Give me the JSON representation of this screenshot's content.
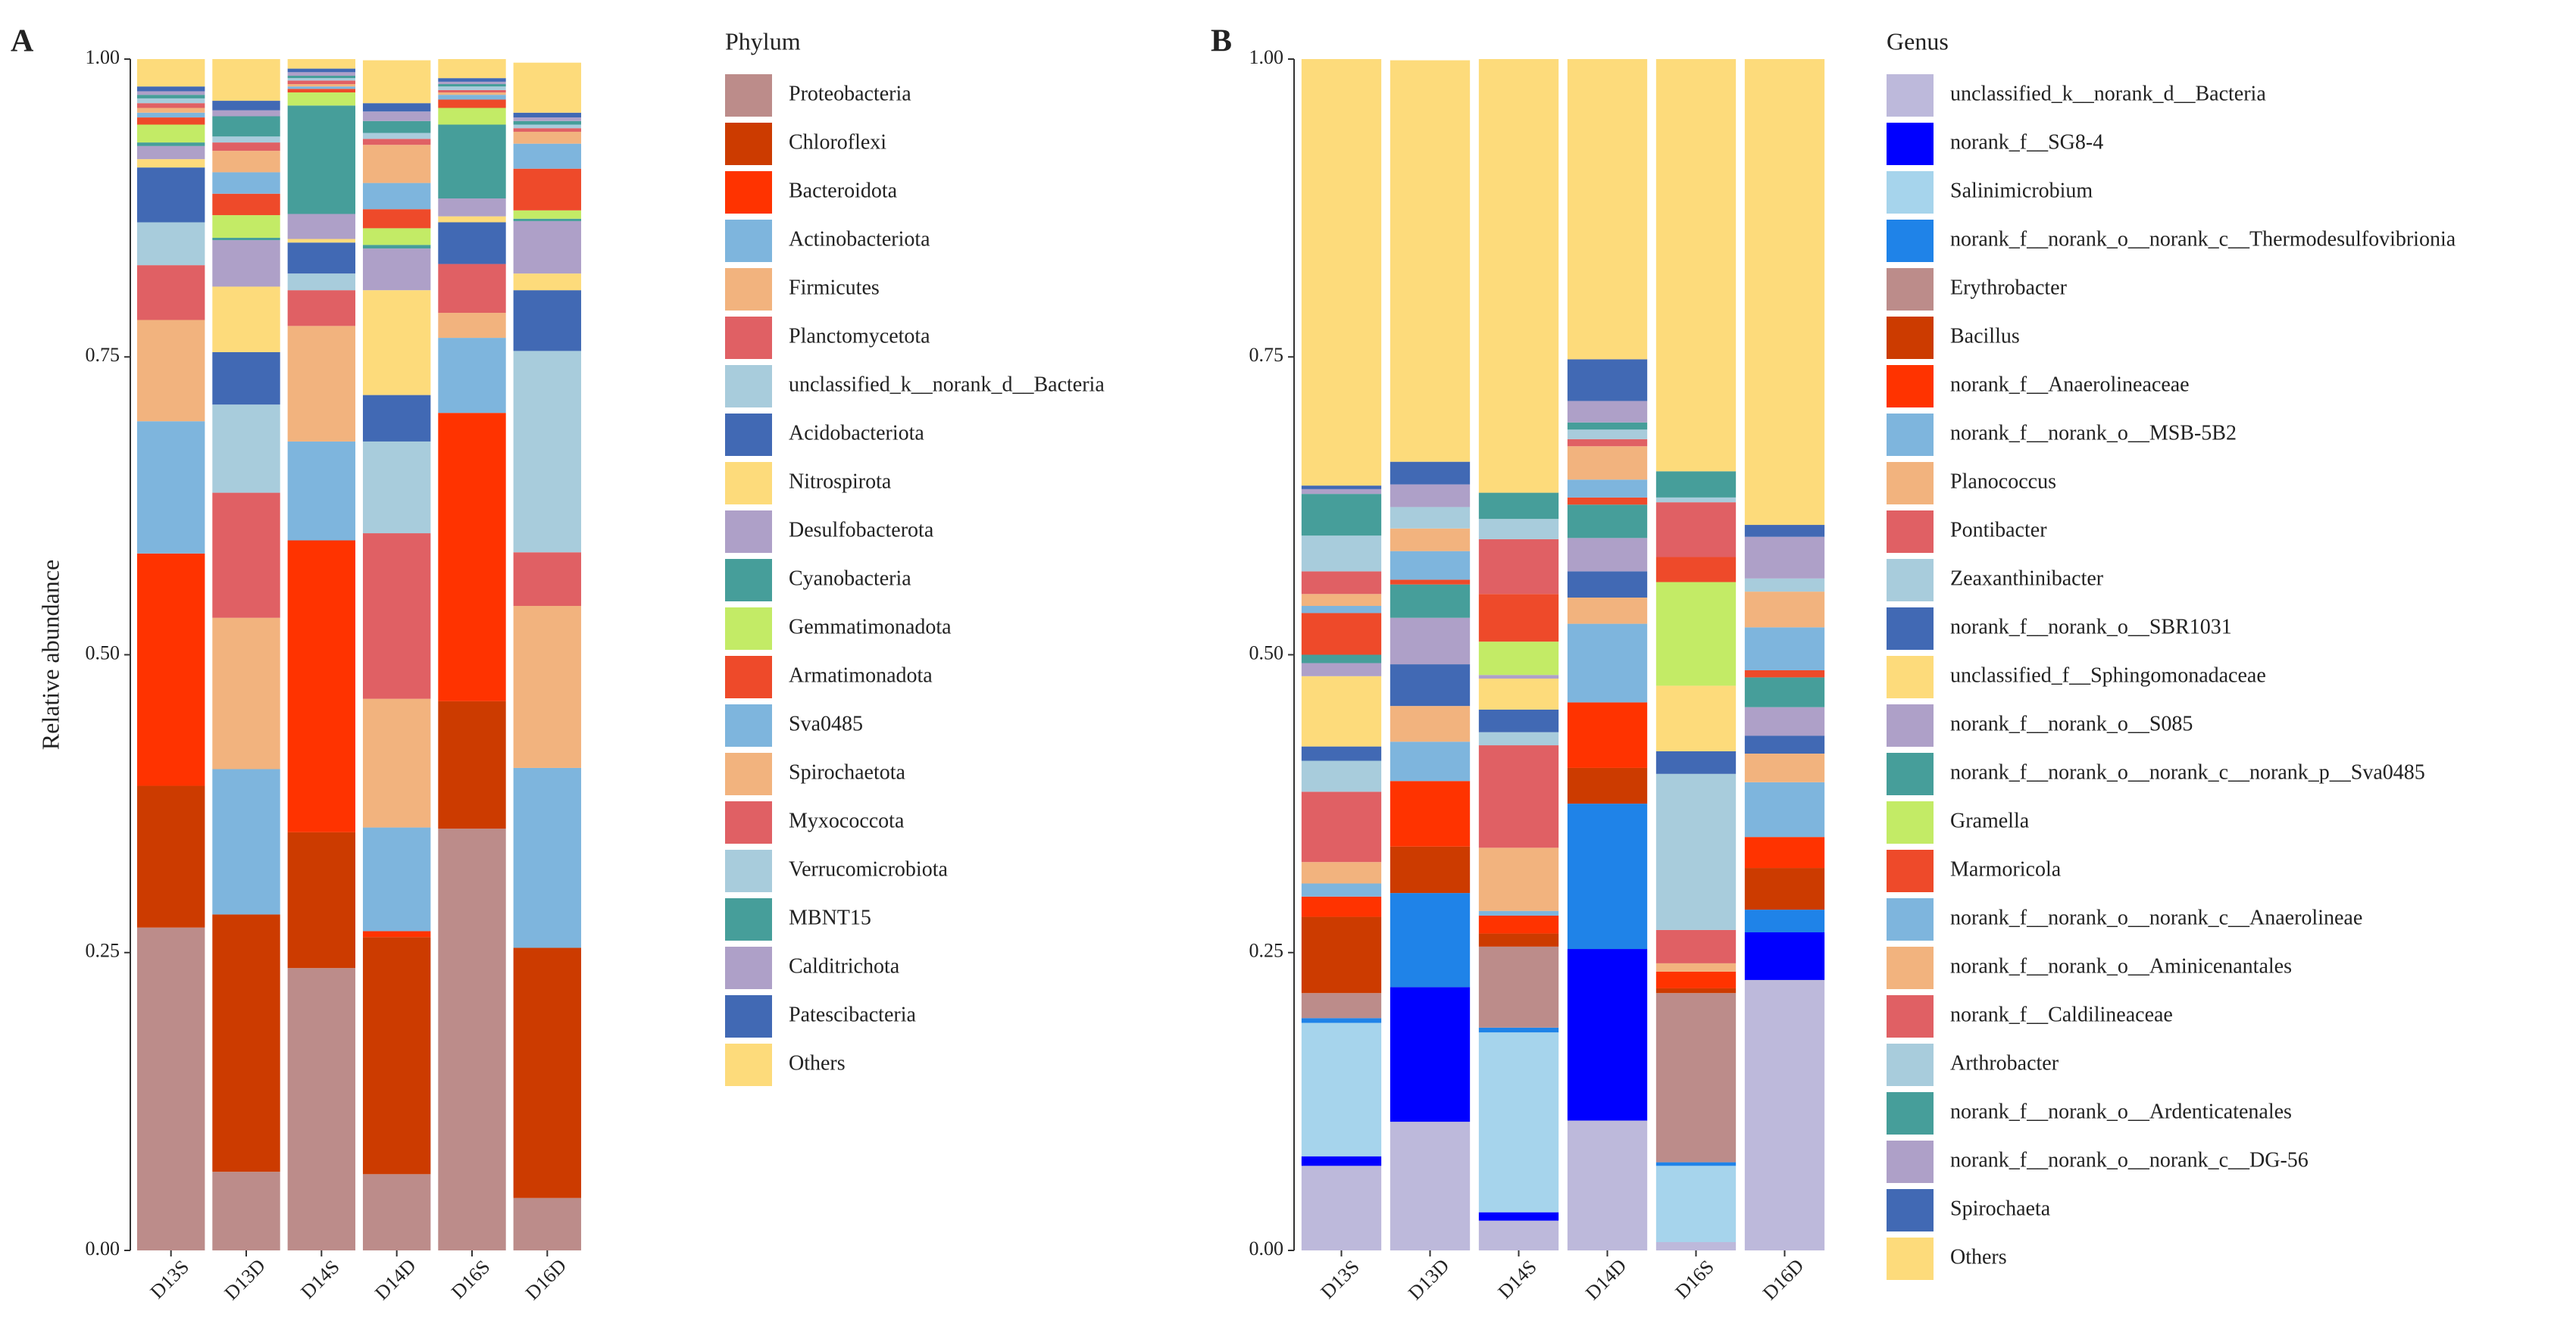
{
  "chart_data": [
    {
      "type": "bar",
      "stacked": true,
      "title": "A",
      "ylabel": "Relative abundance",
      "legend_title": "Phylum",
      "categories": [
        "D13S",
        "D13D",
        "D14S",
        "D14D",
        "D16S",
        "D16D"
      ],
      "ylim": [
        0,
        1
      ],
      "yticks": [
        {
          "value": 0,
          "label": "0.00"
        },
        {
          "value": 0.25,
          "label": "0.25"
        },
        {
          "value": 0.5,
          "label": "0.50"
        },
        {
          "value": 0.75,
          "label": "0.75"
        },
        {
          "value": 1,
          "label": "1.00"
        }
      ],
      "series": [
        {
          "name": "Proteobacteria",
          "color": "#BC8C8A",
          "values": [
            0.271,
            0.066,
            0.237,
            0.064,
            0.354,
            0.044
          ]
        },
        {
          "name": "Chloroflexi",
          "color": "#CC3B00",
          "values": [
            0.119,
            0.216,
            0.114,
            0.199,
            0.107,
            0.21
          ]
        },
        {
          "name": "Bacteroidota",
          "color": "#FF3300",
          "values": [
            0.195,
            0,
            0.245,
            0.005,
            0.242,
            0
          ]
        },
        {
          "name": "Actinobacteriota",
          "color": "#7EB5DD",
          "values": [
            0.111,
            0.122,
            0.083,
            0.087,
            0.063,
            0.151
          ]
        },
        {
          "name": "Firmicutes",
          "color": "#F2B37E",
          "values": [
            0.085,
            0.127,
            0.097,
            0.108,
            0.021,
            0.136
          ]
        },
        {
          "name": "Planctomycetota",
          "color": "#E06064",
          "values": [
            0.046,
            0.105,
            0.03,
            0.139,
            0.041,
            0.045
          ]
        },
        {
          "name": "unclassified_k__norank_d__Bacteria",
          "color": "#A8CCDC",
          "values": [
            0.036,
            0.074,
            0.014,
            0.077,
            0,
            0.169
          ]
        },
        {
          "name": "Acidobacteriota",
          "color": "#4169B4",
          "values": [
            0.046,
            0.044,
            0.026,
            0.039,
            0.035,
            0.051
          ]
        },
        {
          "name": "Nitrospirota",
          "color": "#FDDB7B",
          "values": [
            0.007,
            0.055,
            0.003,
            0.088,
            0.005,
            0.014
          ]
        },
        {
          "name": "Desulfobacterota",
          "color": "#AEA0C8",
          "values": [
            0.011,
            0.039,
            0.021,
            0.035,
            0.015,
            0.044
          ]
        },
        {
          "name": "Cyanobacteria",
          "color": "#469E9A",
          "values": [
            0.003,
            0.002,
            0.091,
            0.003,
            0.062,
            0.002
          ]
        },
        {
          "name": "Gemmatimonadota",
          "color": "#C3EB66",
          "values": [
            0.015,
            0.019,
            0.011,
            0.014,
            0.014,
            0.007
          ]
        },
        {
          "name": "Armatimonadota",
          "color": "#EE4A2A",
          "values": [
            0.006,
            0.018,
            0.003,
            0.016,
            0.007,
            0.035
          ]
        },
        {
          "name": "Sva0485",
          "color": "#7EB5DD",
          "values": [
            0.004,
            0.018,
            0.002,
            0.022,
            0.004,
            0.021
          ]
        },
        {
          "name": "Spirochaetota",
          "color": "#F2B37E",
          "values": [
            0.004,
            0.018,
            0.002,
            0.032,
            0.002,
            0.01
          ]
        },
        {
          "name": "Myxococcota",
          "color": "#E06064",
          "values": [
            0.004,
            0.007,
            0.003,
            0.005,
            0.002,
            0.003
          ]
        },
        {
          "name": "Verrucomicrobiota",
          "color": "#A8CCDC",
          "values": [
            0.004,
            0.005,
            0.002,
            0.005,
            0.003,
            0.003
          ]
        },
        {
          "name": "MBNT15",
          "color": "#469E9A",
          "values": [
            0.003,
            0.017,
            0.002,
            0.01,
            0.002,
            0.003
          ]
        },
        {
          "name": "Calditrichota",
          "color": "#AEA0C8",
          "values": [
            0.003,
            0.005,
            0.003,
            0.008,
            0.002,
            0.003
          ]
        },
        {
          "name": "Patescibacteria",
          "color": "#4169B4",
          "values": [
            0.004,
            0.008,
            0.003,
            0.007,
            0.003,
            0.004
          ]
        },
        {
          "name": "Others",
          "color": "#FDDB7B",
          "values": [
            0.023,
            0.035,
            0.008,
            0.036,
            0.016,
            0.042
          ]
        }
      ]
    },
    {
      "type": "bar",
      "stacked": true,
      "title": "B",
      "legend_title": "Genus",
      "categories": [
        "D13S",
        "D13D",
        "D14S",
        "D14D",
        "D16S",
        "D16D"
      ],
      "ylim": [
        0,
        1
      ],
      "yticks": [
        {
          "value": 0,
          "label": "0.00"
        },
        {
          "value": 0.25,
          "label": "0.25"
        },
        {
          "value": 0.5,
          "label": "0.50"
        },
        {
          "value": 0.75,
          "label": "0.75"
        },
        {
          "value": 1,
          "label": "1.00"
        }
      ],
      "series": [
        {
          "name": "unclassified_k__norank_d__Bacteria",
          "color": "#BDB9DB",
          "values": [
            0.071,
            0.108,
            0.025,
            0.109,
            0.007,
            0.227
          ]
        },
        {
          "name": "norank_f__SG8-4",
          "color": "#0000FF",
          "values": [
            0.008,
            0.113,
            0.007,
            0.144,
            0,
            0.04
          ]
        },
        {
          "name": "Salinimicrobium",
          "color": "#A6D4EC",
          "values": [
            0.112,
            0,
            0.151,
            0,
            0.064,
            0
          ]
        },
        {
          "name": "norank_f__norank_o__norank_c__Thermodesulfovibrionia",
          "color": "#1F83E8",
          "values": [
            0.004,
            0.079,
            0.004,
            0.122,
            0.003,
            0.019
          ]
        },
        {
          "name": "Erythrobacter",
          "color": "#BC8C8A",
          "values": [
            0.021,
            0,
            0.068,
            0,
            0.142,
            0
          ]
        },
        {
          "name": "Bacillus",
          "color": "#CC3B00",
          "values": [
            0.064,
            0.039,
            0.011,
            0.03,
            0.004,
            0.035
          ]
        },
        {
          "name": "norank_f__Anaerolineaceae",
          "color": "#FF3300",
          "values": [
            0.017,
            0.055,
            0.015,
            0.055,
            0.014,
            0.026
          ]
        },
        {
          "name": "norank_f__norank_o__MSB-5B2",
          "color": "#7EB5DD",
          "values": [
            0.011,
            0.033,
            0.004,
            0.066,
            0,
            0.046
          ]
        },
        {
          "name": "Planococcus",
          "color": "#F2B37E",
          "values": [
            0.018,
            0.03,
            0.053,
            0.022,
            0.007,
            0.024
          ]
        },
        {
          "name": "Pontibacter",
          "color": "#E06064",
          "values": [
            0.059,
            0,
            0.086,
            0,
            0.028,
            0
          ]
        },
        {
          "name": "Zeaxanthinibacter",
          "color": "#A8CCDC",
          "values": [
            0.026,
            0,
            0.011,
            0,
            0.131,
            0
          ]
        },
        {
          "name": "norank_f__norank_o__SBR1031",
          "color": "#4169B4",
          "values": [
            0.012,
            0.035,
            0.019,
            0.022,
            0.019,
            0.015
          ]
        },
        {
          "name": "unclassified_f__Sphingomonadaceae",
          "color": "#FDDB7B",
          "values": [
            0.059,
            0,
            0.026,
            0,
            0.055,
            0
          ]
        },
        {
          "name": "norank_f__norank_o__S085",
          "color": "#AEA0C8",
          "values": [
            0.011,
            0.039,
            0.003,
            0.028,
            0,
            0.024
          ]
        },
        {
          "name": "norank_f__norank_o__norank_c__norank_p__Sva0485",
          "color": "#469E9A",
          "values": [
            0.007,
            0.028,
            0,
            0.028,
            0,
            0.025
          ]
        },
        {
          "name": "Gramella",
          "color": "#C3EB66",
          "values": [
            0,
            0,
            0.028,
            0,
            0.087,
            0
          ]
        },
        {
          "name": "Marmoricola",
          "color": "#EE4A2A",
          "values": [
            0.035,
            0.004,
            0.04,
            0.006,
            0.021,
            0.006
          ]
        },
        {
          "name": "norank_f__norank_o__norank_c__Anaerolineae",
          "color": "#7EB5DD",
          "values": [
            0.006,
            0.024,
            0,
            0.015,
            0,
            0.036
          ]
        },
        {
          "name": "norank_f__norank_o__Aminicenantales",
          "color": "#F2B37E",
          "values": [
            0.01,
            0.019,
            0,
            0.028,
            0,
            0.03
          ]
        },
        {
          "name": "norank_f__Caldilineaceae",
          "color": "#E06064",
          "values": [
            0.019,
            0,
            0.046,
            0.006,
            0.046,
            0
          ]
        },
        {
          "name": "Arthrobacter",
          "color": "#A8CCDC",
          "values": [
            0.03,
            0.018,
            0.017,
            0.008,
            0.004,
            0.011
          ]
        },
        {
          "name": "norank_f__norank_o__Ardenticatenales",
          "color": "#469E9A",
          "values": [
            0.035,
            0,
            0.022,
            0.006,
            0.022,
            0
          ]
        },
        {
          "name": "norank_f__norank_o__norank_c__DG-56",
          "color": "#AEA0C8",
          "values": [
            0.004,
            0.019,
            0,
            0.018,
            0,
            0.035
          ]
        },
        {
          "name": "Spirochaeta",
          "color": "#4169B4",
          "values": [
            0.003,
            0.019,
            0,
            0.035,
            0,
            0.01
          ]
        },
        {
          "name": "Others",
          "color": "#FDDB7B",
          "values": [
            0.358,
            0.337,
            0.364,
            0.252,
            0.346,
            0.391
          ]
        }
      ]
    }
  ]
}
